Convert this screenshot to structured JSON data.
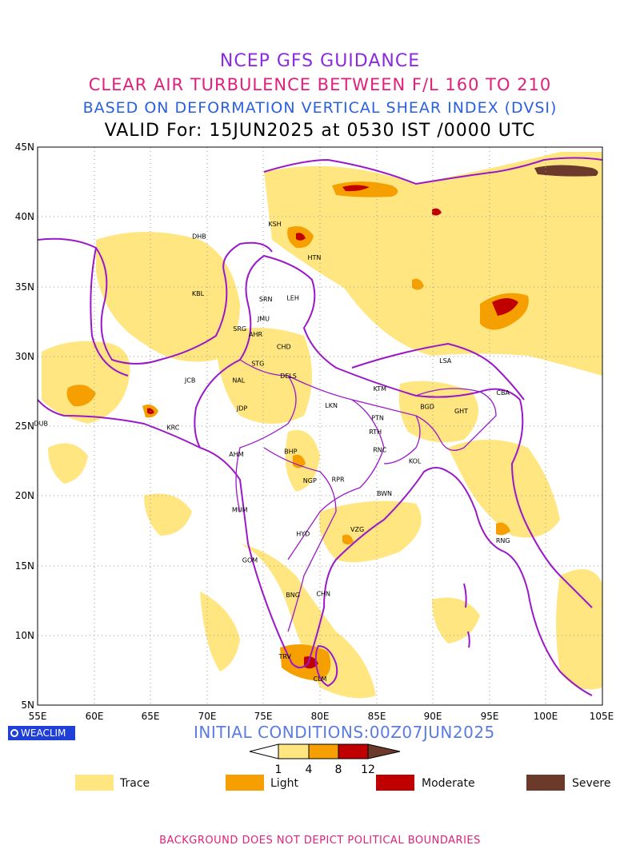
{
  "header": {
    "line1": "NCEP GFS GUIDANCE",
    "line2": "CLEAR AIR TURBULENCE BETWEEN F/L 160 TO 210",
    "line3": "BASED ON DEFORMATION VERTICAL SHEAR INDEX (DVSI)",
    "line4": "VALID For: 15JUN2025 at 0530 IST /0000 UTC"
  },
  "map": {
    "lon_range": [
      55,
      105
    ],
    "lat_range": [
      5,
      45
    ],
    "lon_ticks": [
      "55E",
      "60E",
      "65E",
      "70E",
      "75E",
      "80E",
      "85E",
      "90E",
      "95E",
      "100E",
      "105E"
    ],
    "lat_ticks": [
      "45N",
      "40N",
      "35N",
      "30N",
      "25N",
      "20N",
      "15N",
      "10N",
      "5N"
    ],
    "grid": "dotted",
    "boundary_color": "#9b18c8",
    "stations": [
      {
        "code": "KSH",
        "lon": 76.0,
        "lat": 39.5
      },
      {
        "code": "DHB",
        "lon": 69.3,
        "lat": 38.6
      },
      {
        "code": "HTN",
        "lon": 79.5,
        "lat": 37.1
      },
      {
        "code": "KBL",
        "lon": 69.2,
        "lat": 34.5
      },
      {
        "code": "SRN",
        "lon": 75.2,
        "lat": 34.1
      },
      {
        "code": "LEH",
        "lon": 77.6,
        "lat": 34.2
      },
      {
        "code": "JMU",
        "lon": 75.0,
        "lat": 32.7
      },
      {
        "code": "SRG",
        "lon": 72.9,
        "lat": 32.0
      },
      {
        "code": "AHR",
        "lon": 74.3,
        "lat": 31.6
      },
      {
        "code": "CHD",
        "lon": 76.8,
        "lat": 30.7
      },
      {
        "code": "STG",
        "lon": 74.5,
        "lat": 29.5
      },
      {
        "code": "NAL",
        "lon": 72.8,
        "lat": 28.3
      },
      {
        "code": "JCB",
        "lon": 68.5,
        "lat": 28.3
      },
      {
        "code": "DELS",
        "lon": 77.2,
        "lat": 28.6
      },
      {
        "code": "LSA",
        "lon": 91.1,
        "lat": 29.7
      },
      {
        "code": "KTM",
        "lon": 85.3,
        "lat": 27.7
      },
      {
        "code": "CBA",
        "lon": 96.2,
        "lat": 27.4
      },
      {
        "code": "BGD",
        "lon": 89.5,
        "lat": 26.4
      },
      {
        "code": "GHT",
        "lon": 92.5,
        "lat": 26.1
      },
      {
        "code": "JDP",
        "lon": 73.1,
        "lat": 26.3
      },
      {
        "code": "LKN",
        "lon": 81.0,
        "lat": 26.5
      },
      {
        "code": "PTN",
        "lon": 85.1,
        "lat": 25.6
      },
      {
        "code": "DUB",
        "lon": 55.3,
        "lat": 25.2
      },
      {
        "code": "KRC",
        "lon": 67.0,
        "lat": 24.9
      },
      {
        "code": "RTH",
        "lon": 84.9,
        "lat": 24.6
      },
      {
        "code": "AHM",
        "lon": 72.6,
        "lat": 23.0
      },
      {
        "code": "BHP",
        "lon": 77.4,
        "lat": 23.2
      },
      {
        "code": "RNC",
        "lon": 85.3,
        "lat": 23.3
      },
      {
        "code": "KOL",
        "lon": 88.4,
        "lat": 22.5
      },
      {
        "code": "NGP",
        "lon": 79.1,
        "lat": 21.1
      },
      {
        "code": "RPR",
        "lon": 81.6,
        "lat": 21.2
      },
      {
        "code": "BWN",
        "lon": 85.7,
        "lat": 20.2
      },
      {
        "code": "MUM",
        "lon": 72.9,
        "lat": 19.0
      },
      {
        "code": "HYD",
        "lon": 78.5,
        "lat": 17.3
      },
      {
        "code": "VZG",
        "lon": 83.3,
        "lat": 17.6
      },
      {
        "code": "RNG",
        "lon": 96.2,
        "lat": 16.8
      },
      {
        "code": "GOM",
        "lon": 73.8,
        "lat": 15.4
      },
      {
        "code": "CHN",
        "lon": 80.3,
        "lat": 13.0
      },
      {
        "code": "BNG",
        "lon": 77.6,
        "lat": 12.9
      },
      {
        "code": "TRV",
        "lon": 76.9,
        "lat": 8.5
      },
      {
        "code": "CLM",
        "lon": 80.0,
        "lat": 6.9
      }
    ]
  },
  "footer": {
    "logo_text": "WEACLIM",
    "initial_conditions": "INITIAL CONDITIONS:00Z07JUN2025",
    "disclaimer": "BACKGROUND DOES NOT DEPICT POLITICAL BOUNDARIES"
  },
  "colorbar": {
    "ticks": [
      "1",
      "4",
      "8",
      "12"
    ],
    "colors": [
      "#ffe680",
      "#f5a000",
      "#c00000",
      "#6b3a2a"
    ]
  },
  "legend": [
    {
      "label": "Trace",
      "color": "#ffe680"
    },
    {
      "label": "Light",
      "color": "#f5a000"
    },
    {
      "label": "Moderate",
      "color": "#c00000"
    },
    {
      "label": "Severe",
      "color": "#6b3a2a"
    }
  ]
}
